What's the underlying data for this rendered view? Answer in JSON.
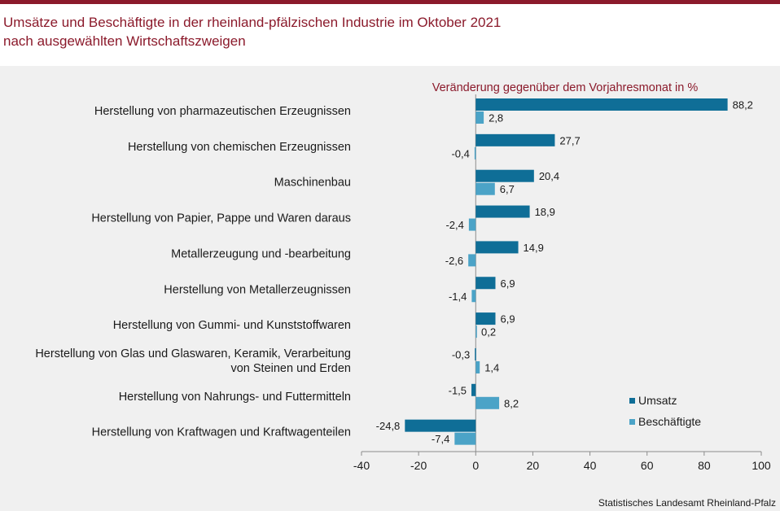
{
  "header": {
    "title_line1": "Umsätze und Beschäftigte in der rheinland-pfälzischen Industrie im Oktober 2021",
    "title_line2": "nach ausgewählten Wirtschaftszweigen"
  },
  "source": "Statistisches Landesamt Rheinland-Pfalz",
  "colors": {
    "umsatz": "#0f6e97",
    "beschaeftigte": "#4ba3c7",
    "title": "#8b1a2b"
  },
  "chart_data": {
    "type": "bar",
    "orientation": "horizontal",
    "subtitle": "Veränderung gegenüber dem Vorjahresmonat in %",
    "categories": [
      [
        "Herstellung von pharmazeutischen Erzeugnissen"
      ],
      [
        "Herstellung von chemischen Erzeugnissen"
      ],
      [
        "Maschinenbau"
      ],
      [
        "Herstellung von Papier, Pappe und Waren daraus"
      ],
      [
        "Metallerzeugung und -bearbeitung"
      ],
      [
        "Herstellung von Metallerzeugnissen"
      ],
      [
        "Herstellung von Gummi- und Kunststoffwaren"
      ],
      [
        "Herstellung von Glas und Glaswaren, Keramik, Verarbeitung",
        "von Steinen und Erden"
      ],
      [
        "Herstellung von Nahrungs- und Futtermitteln"
      ],
      [
        "Herstellung von Kraftwagen und Kraftwagenteilen"
      ]
    ],
    "series": [
      {
        "name": "Umsatz",
        "values": [
          88.2,
          27.7,
          20.4,
          18.9,
          14.9,
          6.9,
          6.9,
          -0.3,
          -1.5,
          -24.8
        ],
        "labels": [
          "88,2",
          "27,7",
          "20,4",
          "18,9",
          "14,9",
          "6,9",
          "6,9",
          "-0,3",
          "-1,5",
          "-24,8"
        ]
      },
      {
        "name": "Beschäftigte",
        "values": [
          2.8,
          -0.4,
          6.7,
          -2.4,
          -2.6,
          -1.4,
          0.2,
          1.4,
          8.2,
          -7.4
        ],
        "labels": [
          "2,8",
          "-0,4",
          "6,7",
          "-2,4",
          "-2,6",
          "-1,4",
          "0,2",
          "1,4",
          "8,2",
          "-7,4"
        ]
      }
    ],
    "xlim": [
      -40,
      100
    ],
    "xticks": [
      -40,
      -20,
      0,
      20,
      40,
      60,
      80,
      100
    ],
    "xtick_labels": [
      "-40",
      "-20",
      "0",
      "20",
      "40",
      "60",
      "80",
      "100"
    ],
    "grid": false,
    "legend_position": "bottom-right"
  }
}
